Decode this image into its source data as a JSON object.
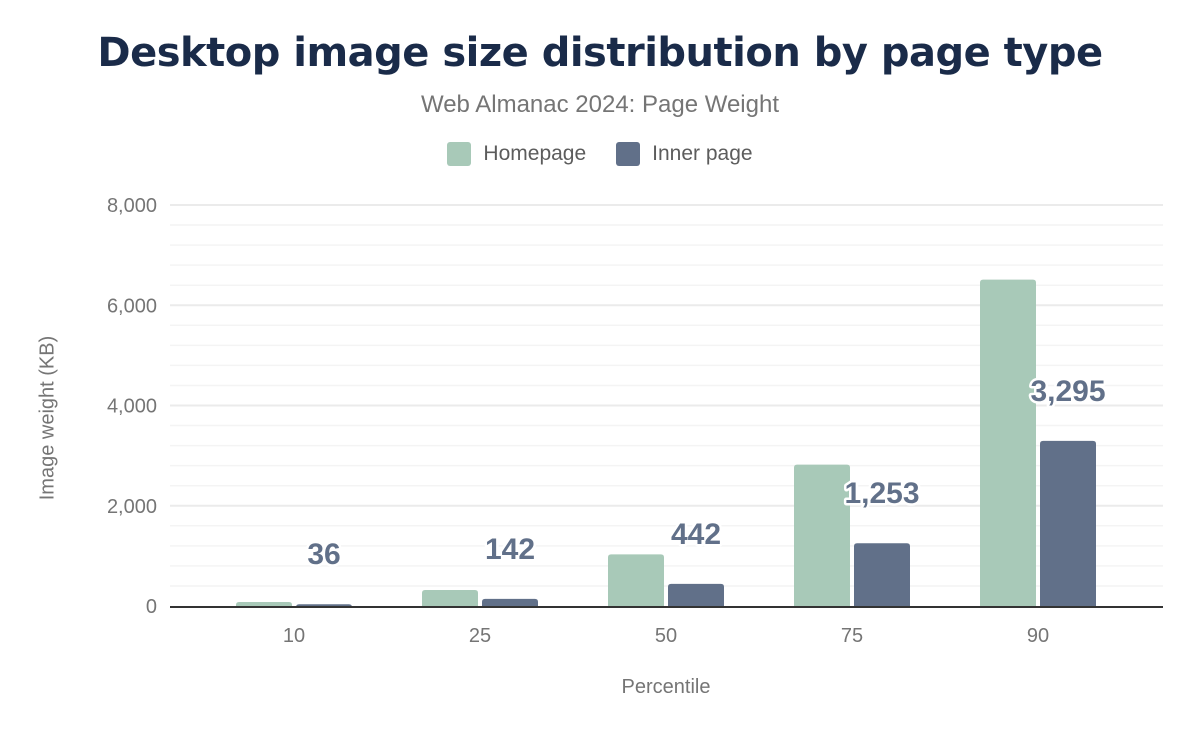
{
  "title": "Desktop image size distribution by page type",
  "subtitle": "Web Almanac 2024: Page Weight",
  "chart_data": {
    "type": "bar",
    "title": "Desktop image size distribution by page type",
    "subtitle": "Web Almanac 2024: Page Weight",
    "xlabel": "Percentile",
    "ylabel": "Image weight (KB)",
    "categories": [
      "10",
      "25",
      "50",
      "75",
      "90"
    ],
    "series": [
      {
        "name": "Homepage",
        "color": "#a8c9b8",
        "values": [
          80,
          320,
          1030,
          2820,
          6510
        ]
      },
      {
        "name": "Inner page",
        "color": "#617089",
        "values": [
          36,
          142,
          442,
          1253,
          3295
        ],
        "data_labels": [
          "36",
          "142",
          "442",
          "1,253",
          "3,295"
        ]
      }
    ],
    "ylim": [
      0,
      8000
    ],
    "yticks": [
      "0",
      "2,000",
      "4,000",
      "6,000",
      "8,000"
    ],
    "grid": true,
    "legend": "top-center"
  }
}
